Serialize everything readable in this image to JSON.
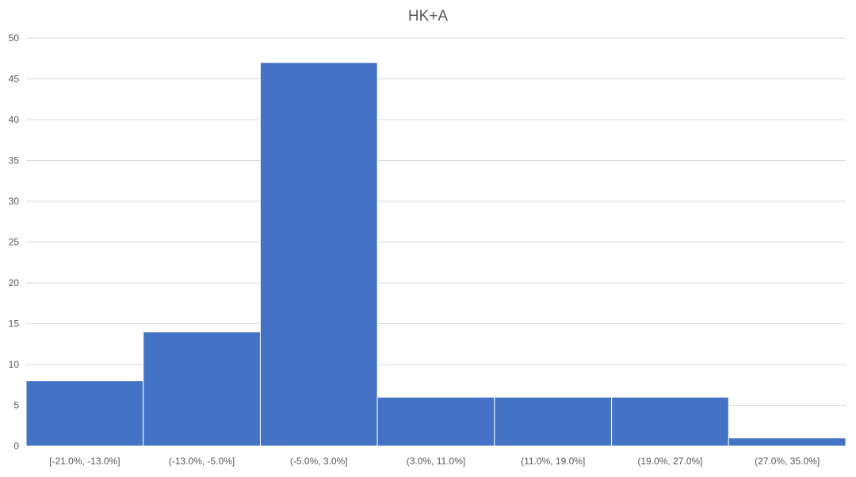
{
  "chart_data": {
    "type": "bar",
    "title": "HK+A",
    "xlabel": "",
    "ylabel": "",
    "categories": [
      "[-21.0%, -13.0%]",
      "(-13.0%, -5.0%]",
      "(-5.0%, 3.0%]",
      "(3.0%, 11.0%]",
      "(11.0%, 19.0%]",
      "(19.0%, 27.0%]",
      "(27.0%, 35.0%]"
    ],
    "values": [
      8,
      14,
      47,
      6,
      6,
      6,
      1
    ],
    "ylim": [
      0,
      50
    ],
    "yticks": [
      0,
      5,
      10,
      15,
      20,
      25,
      30,
      35,
      40,
      45,
      50
    ],
    "bar_color": "#4472C4",
    "grid": true,
    "legend": "none"
  }
}
